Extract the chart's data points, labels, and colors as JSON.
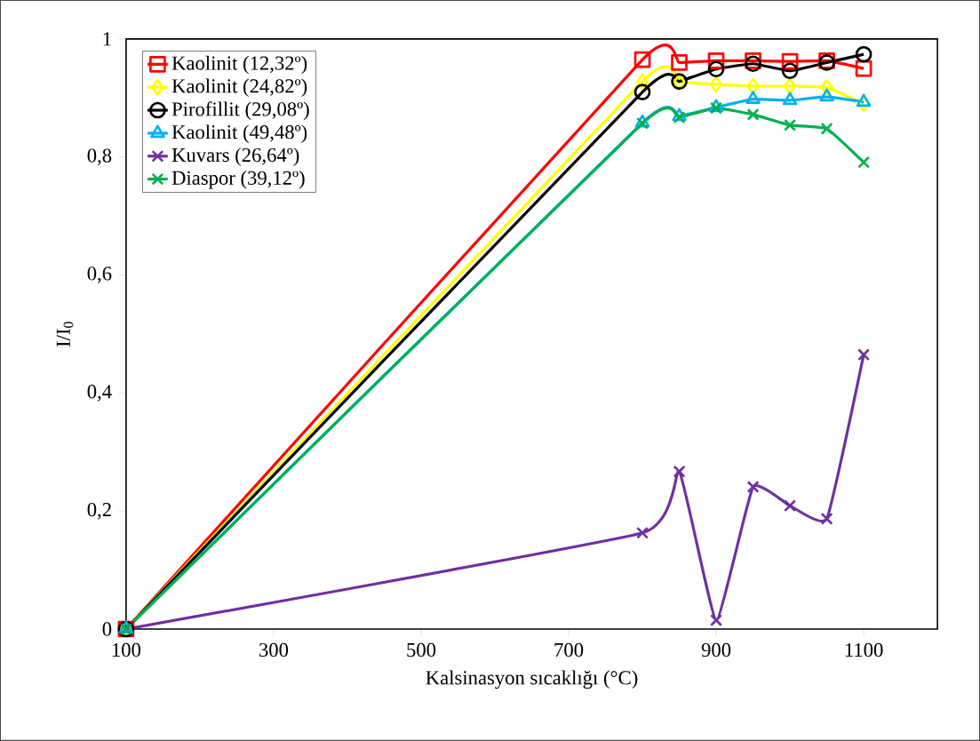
{
  "chart_data": {
    "type": "line",
    "xlabel": "Kalsinasyon sıcaklığı (°C)",
    "ylabel": "I/I$_{0}$",
    "x": [
      100,
      800,
      850,
      900,
      950,
      1000,
      1050,
      1100
    ],
    "xlim": [
      100,
      1200
    ],
    "xticks": [
      100,
      300,
      500,
      700,
      900,
      1100
    ],
    "ylim": [
      0,
      1
    ],
    "yticks": [
      0,
      {
        "value": 0.2,
        "label": "0,2"
      },
      {
        "value": 0.4,
        "label": "0,4"
      },
      {
        "value": 0.6,
        "label": "0,6"
      },
      {
        "value": 0.8,
        "label": "0,8"
      },
      1
    ],
    "legend": "top left",
    "grid": false,
    "line_style": "solid",
    "series": [
      {
        "name": "Kaolinit (12,32º)",
        "color": "#ff0000",
        "marker": "square",
        "values": [
          0,
          0.965,
          0.96,
          0.963,
          0.963,
          0.962,
          0.963,
          0.95
        ]
      },
      {
        "name": "Kaolinit (24,82º)",
        "color": "#ffff00",
        "marker": "diamond",
        "values": [
          0,
          0.928,
          0.927,
          0.923,
          0.92,
          0.92,
          0.918,
          0.89
        ]
      },
      {
        "name": "Pirofillit (29,08º)",
        "color": "#000000",
        "marker": "circle",
        "values": [
          0,
          0.91,
          0.928,
          0.949,
          0.958,
          0.946,
          0.96,
          0.974
        ]
      },
      {
        "name": "Kaolinit (49,48º)",
        "color": "#00b0f0",
        "marker": "triangle",
        "values": [
          0,
          0.858,
          0.869,
          0.884,
          0.898,
          0.896,
          0.902,
          0.893
        ]
      },
      {
        "name": "Kuvars (26,64º)",
        "color": "#7030a0",
        "marker": "cross",
        "values": [
          0,
          0.163,
          0.267,
          0.015,
          0.241,
          0.209,
          0.187,
          0.465
        ]
      },
      {
        "name": "Diaspor (39,12º)",
        "color": "#00b050",
        "marker": "cross",
        "values": [
          0,
          0.857,
          0.867,
          0.883,
          0.872,
          0.854,
          0.848,
          0.791
        ]
      }
    ]
  }
}
